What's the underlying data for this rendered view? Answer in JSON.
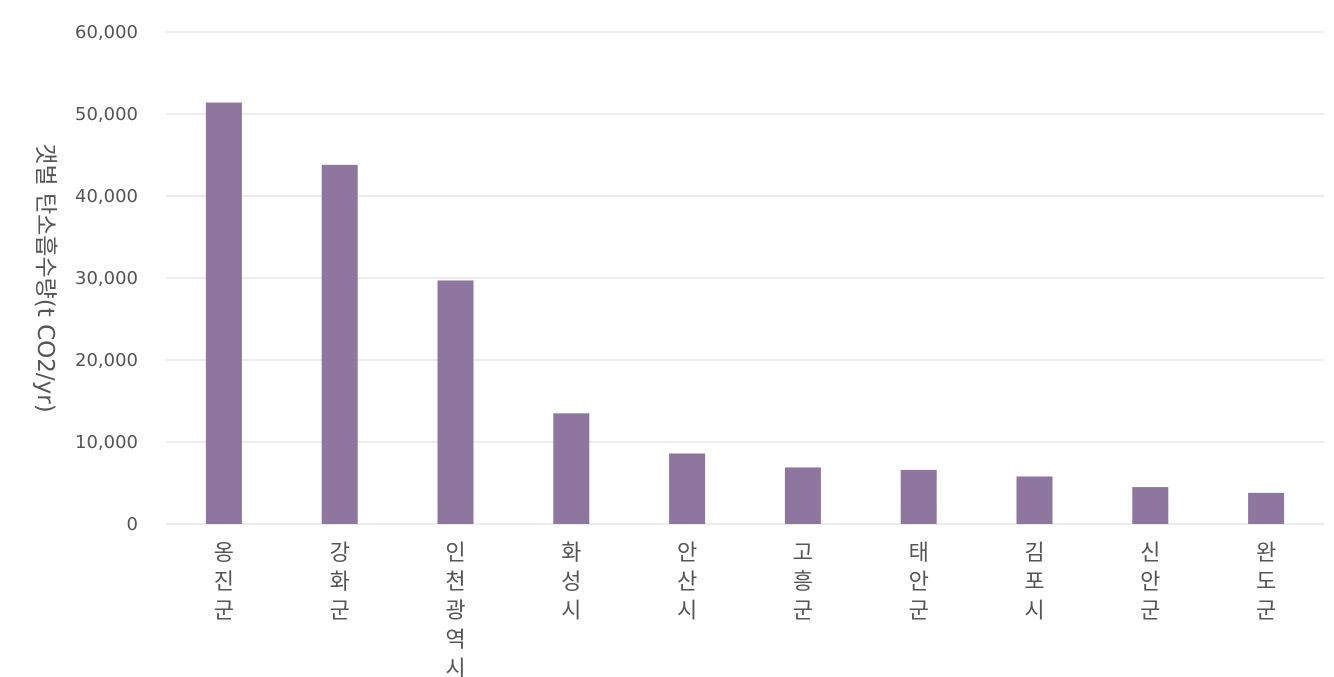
{
  "chart_data": {
    "type": "bar",
    "ylabel": "갯벌 탄소흡수량(t CO2/yr)",
    "xlabel": "",
    "categories": [
      "옹진군",
      "강화군",
      "인천광역시",
      "화성시",
      "안산시",
      "고흥군",
      "태안군",
      "김포시",
      "신안군",
      "완도군"
    ],
    "values": [
      51400,
      43800,
      29700,
      13500,
      8600,
      6900,
      6600,
      5800,
      4500,
      3800
    ],
    "ylim": [
      0,
      60000
    ],
    "yticks": [
      0,
      10000,
      20000,
      30000,
      40000,
      50000,
      60000
    ],
    "ytick_labels": [
      "0",
      "10,000",
      "20,000",
      "30,000",
      "40,000",
      "50,000",
      "60,000"
    ],
    "grid": true,
    "legend": "none",
    "bar_color": "#8f769f"
  }
}
